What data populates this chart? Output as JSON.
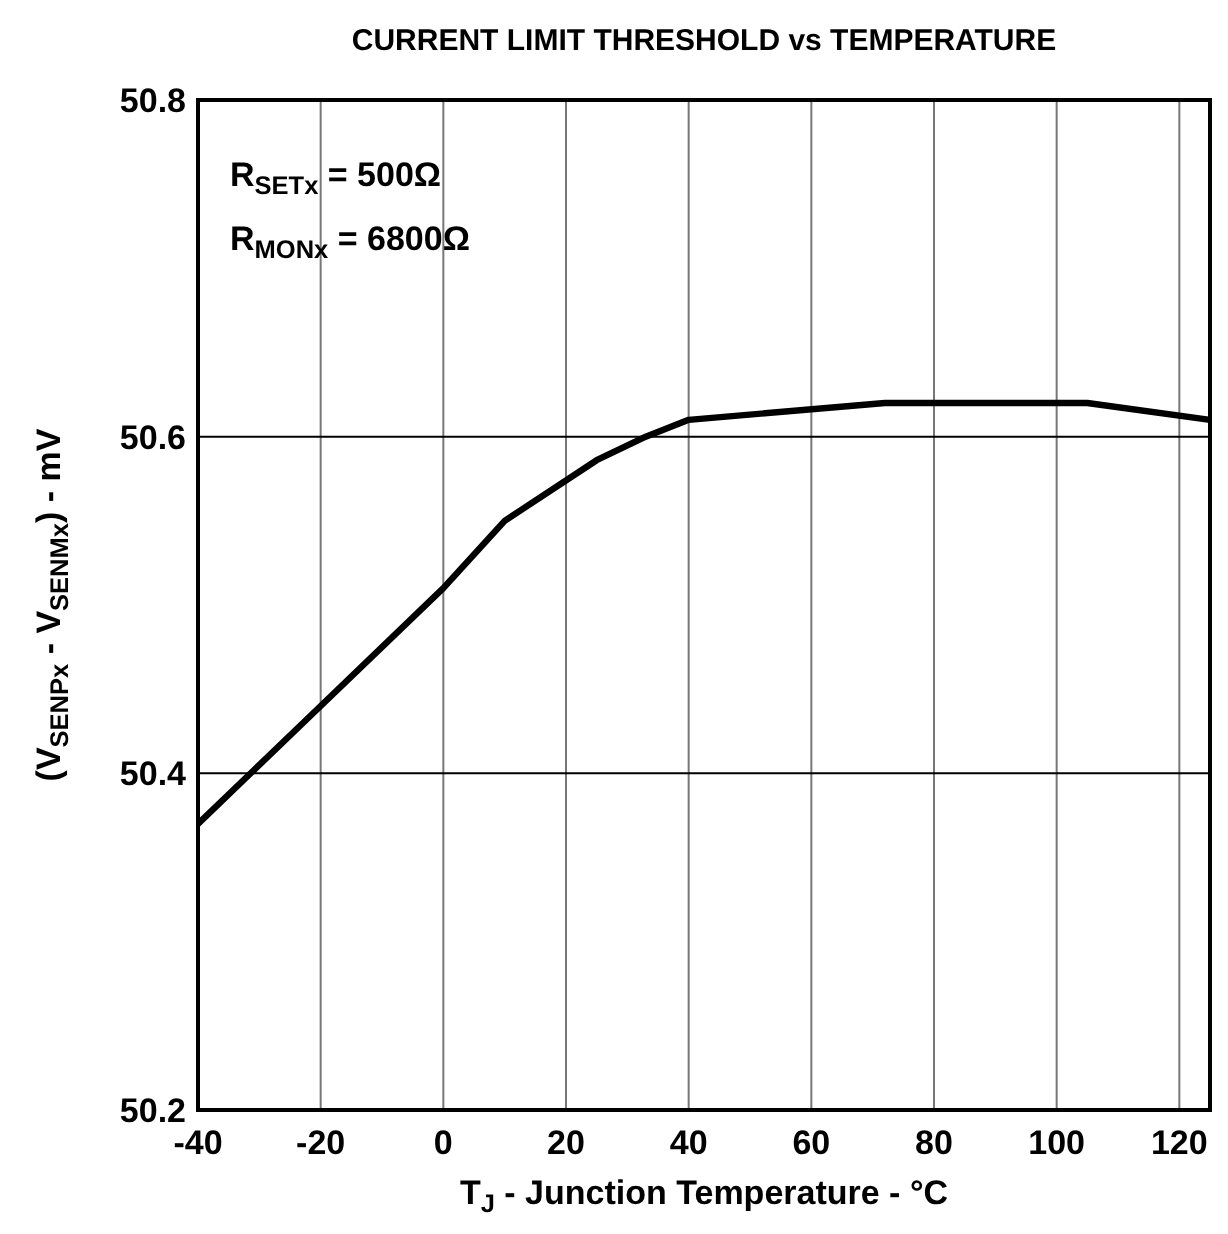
{
  "chart_data": {
    "type": "line",
    "title": "CURRENT LIMIT THRESHOLD vs TEMPERATURE",
    "xlabel": "T$_{J}$ - Junction Temperature - °C",
    "ylabel": "(V$_{SENPx}$ - V$_{SENMx}$) - mV",
    "annotations": [
      "R$_{SETx}$ = 500Ω",
      "R$_{MONx}$ = 6800Ω"
    ],
    "x": [
      -40,
      -20,
      0,
      10,
      25,
      33,
      40,
      72,
      105,
      125
    ],
    "series": [
      {
        "color": "#000000",
        "values": [
          50.37,
          50.44,
          50.51,
          50.55,
          50.586,
          50.6,
          50.61,
          50.62,
          50.62,
          50.61
        ]
      }
    ],
    "xlim": [
      -40,
      125
    ],
    "xticks": [
      -40,
      -20,
      0,
      20,
      40,
      60,
      80,
      100,
      120
    ],
    "ylim": [
      50.2,
      50.8
    ],
    "yticks": [
      50.2,
      50.4,
      50.6,
      50.8
    ],
    "grid": true,
    "marker": "none",
    "line_style": "solid"
  }
}
